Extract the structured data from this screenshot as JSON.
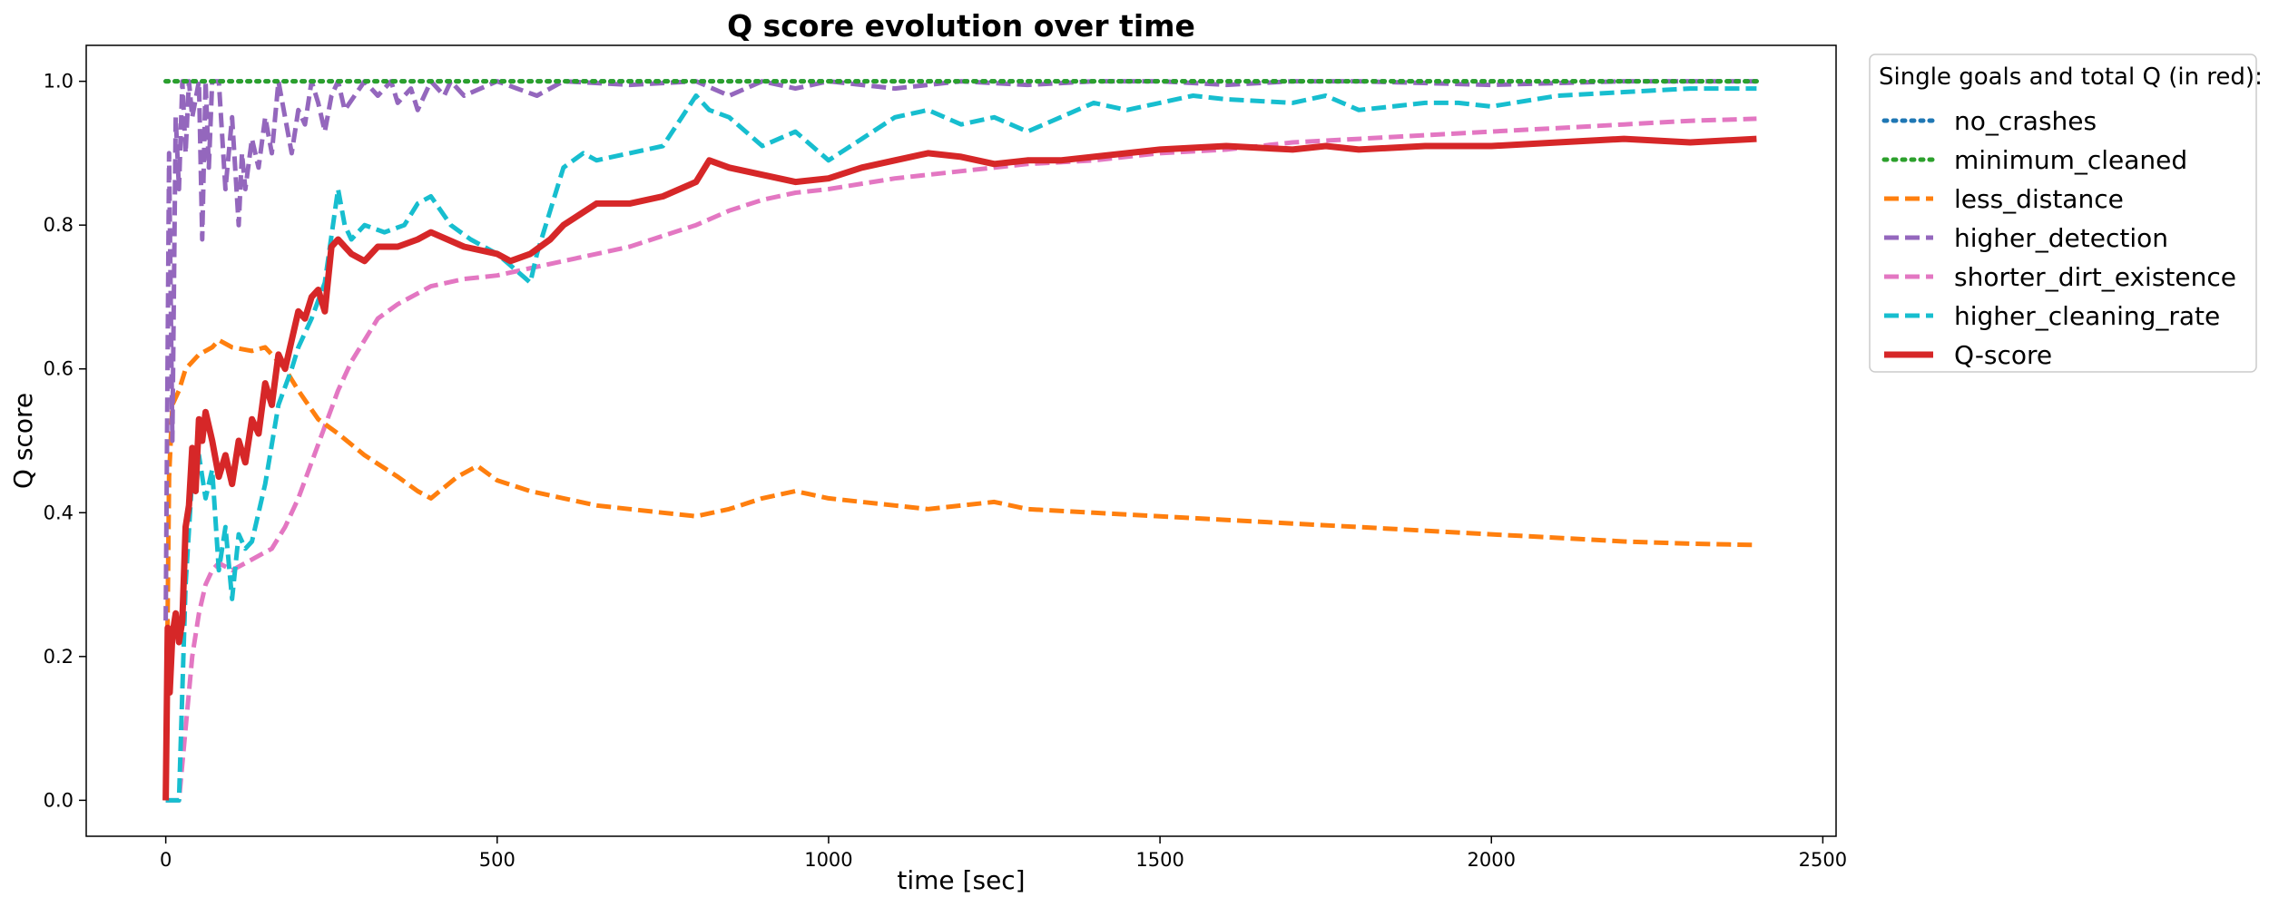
{
  "chart_data": {
    "type": "line",
    "title": "Q score evolution over time",
    "xlabel": "time [sec]",
    "ylabel": "Q score",
    "xlim": [
      -120,
      2520
    ],
    "ylim": [
      -0.05,
      1.05
    ],
    "xticks": [
      0,
      500,
      1000,
      1500,
      2000,
      2500
    ],
    "yticks": [
      0.0,
      0.2,
      0.4,
      0.6,
      0.8,
      1.0
    ],
    "grid": false,
    "legend": {
      "title": "Single goals and total Q (in red):",
      "position": "outside-right"
    },
    "series": [
      {
        "name": "no_crashes",
        "color": "#1f77b4",
        "style": "dotted",
        "x": [
          0,
          2400
        ],
        "y": [
          1.0,
          1.0
        ]
      },
      {
        "name": "minimum_cleaned",
        "color": "#2ca02c",
        "style": "dotted",
        "x": [
          0,
          2400
        ],
        "y": [
          1.0,
          1.0
        ]
      },
      {
        "name": "less_distance",
        "color": "#ff7f0e",
        "style": "dashed",
        "x": [
          0,
          5,
          10,
          20,
          30,
          50,
          70,
          80,
          100,
          130,
          150,
          180,
          200,
          230,
          260,
          300,
          350,
          380,
          400,
          440,
          470,
          500,
          550,
          600,
          650,
          700,
          750,
          800,
          850,
          900,
          950,
          1000,
          1050,
          1100,
          1150,
          1200,
          1250,
          1300,
          1400,
          1500,
          1600,
          1700,
          1800,
          1900,
          2000,
          2100,
          2200,
          2300,
          2400
        ],
        "y": [
          0.0,
          0.45,
          0.55,
          0.57,
          0.6,
          0.62,
          0.63,
          0.64,
          0.63,
          0.625,
          0.63,
          0.6,
          0.57,
          0.53,
          0.51,
          0.48,
          0.45,
          0.43,
          0.42,
          0.45,
          0.465,
          0.445,
          0.43,
          0.42,
          0.41,
          0.405,
          0.4,
          0.395,
          0.405,
          0.42,
          0.43,
          0.42,
          0.415,
          0.41,
          0.405,
          0.41,
          0.415,
          0.405,
          0.4,
          0.395,
          0.39,
          0.385,
          0.38,
          0.375,
          0.37,
          0.365,
          0.36,
          0.357,
          0.355
        ]
      },
      {
        "name": "higher_detection",
        "color": "#9467bd",
        "style": "dashed",
        "x": [
          0,
          5,
          10,
          15,
          20,
          25,
          30,
          35,
          40,
          50,
          55,
          60,
          65,
          70,
          80,
          90,
          100,
          110,
          115,
          120,
          130,
          140,
          150,
          160,
          170,
          180,
          190,
          200,
          210,
          220,
          230,
          240,
          250,
          260,
          270,
          300,
          320,
          340,
          350,
          370,
          380,
          400,
          420,
          430,
          450,
          500,
          530,
          560,
          600,
          700,
          800,
          850,
          900,
          950,
          1000,
          1100,
          1200,
          1300,
          1400,
          1500,
          1600,
          1700,
          1800,
          2000,
          2200,
          2400
        ],
        "y": [
          0.25,
          0.9,
          0.5,
          0.95,
          0.85,
          1.0,
          0.9,
          1.0,
          0.95,
          1.0,
          0.78,
          1.0,
          0.88,
          1.0,
          1.0,
          0.85,
          0.95,
          0.8,
          0.9,
          0.85,
          0.92,
          0.88,
          0.95,
          0.9,
          1.0,
          0.95,
          0.9,
          0.96,
          0.94,
          1.0,
          0.97,
          0.93,
          0.98,
          1.0,
          0.96,
          1.0,
          0.98,
          1.0,
          0.97,
          0.99,
          0.96,
          1.0,
          0.98,
          1.0,
          0.98,
          1.0,
          0.99,
          0.98,
          1.0,
          0.995,
          1.0,
          0.98,
          1.0,
          0.99,
          1.0,
          0.99,
          1.0,
          0.995,
          1.0,
          1.0,
          0.995,
          1.0,
          1.0,
          0.995,
          1.0,
          1.0
        ]
      },
      {
        "name": "shorter_dirt_existence",
        "color": "#e377c2",
        "style": "dashed",
        "x": [
          0,
          20,
          30,
          40,
          50,
          60,
          70,
          80,
          100,
          120,
          140,
          160,
          180,
          200,
          220,
          240,
          260,
          280,
          300,
          320,
          350,
          400,
          450,
          500,
          550,
          600,
          650,
          700,
          750,
          800,
          850,
          900,
          950,
          1000,
          1100,
          1200,
          1300,
          1400,
          1500,
          1600,
          1700,
          1800,
          1900,
          2000,
          2100,
          2200,
          2300,
          2400
        ],
        "y": [
          0.0,
          0.0,
          0.1,
          0.2,
          0.26,
          0.3,
          0.32,
          0.33,
          0.32,
          0.33,
          0.34,
          0.35,
          0.38,
          0.42,
          0.47,
          0.52,
          0.57,
          0.61,
          0.64,
          0.67,
          0.69,
          0.715,
          0.725,
          0.73,
          0.74,
          0.75,
          0.76,
          0.77,
          0.785,
          0.8,
          0.82,
          0.835,
          0.845,
          0.85,
          0.865,
          0.875,
          0.885,
          0.89,
          0.9,
          0.905,
          0.915,
          0.92,
          0.925,
          0.93,
          0.935,
          0.94,
          0.945,
          0.948
        ]
      },
      {
        "name": "higher_cleaning_rate",
        "color": "#17becf",
        "style": "dashed",
        "x": [
          0,
          20,
          30,
          40,
          50,
          60,
          70,
          80,
          90,
          100,
          110,
          120,
          130,
          150,
          170,
          190,
          200,
          220,
          240,
          260,
          270,
          280,
          300,
          330,
          360,
          380,
          400,
          430,
          460,
          500,
          550,
          560,
          580,
          600,
          630,
          650,
          700,
          750,
          800,
          820,
          850,
          900,
          950,
          1000,
          1050,
          1100,
          1150,
          1200,
          1250,
          1300,
          1350,
          1400,
          1450,
          1500,
          1550,
          1600,
          1700,
          1750,
          1800,
          1850,
          1900,
          1950,
          2000,
          2100,
          2200,
          2300,
          2400
        ],
        "y": [
          0.0,
          0.0,
          0.3,
          0.45,
          0.48,
          0.42,
          0.46,
          0.32,
          0.38,
          0.28,
          0.37,
          0.35,
          0.36,
          0.44,
          0.55,
          0.6,
          0.63,
          0.67,
          0.72,
          0.85,
          0.8,
          0.78,
          0.8,
          0.79,
          0.8,
          0.83,
          0.84,
          0.8,
          0.78,
          0.76,
          0.72,
          0.76,
          0.82,
          0.88,
          0.9,
          0.89,
          0.9,
          0.91,
          0.98,
          0.96,
          0.95,
          0.91,
          0.93,
          0.89,
          0.92,
          0.95,
          0.96,
          0.94,
          0.95,
          0.93,
          0.95,
          0.97,
          0.96,
          0.97,
          0.98,
          0.975,
          0.97,
          0.98,
          0.96,
          0.965,
          0.97,
          0.97,
          0.965,
          0.98,
          0.985,
          0.99,
          0.99
        ]
      },
      {
        "name": "Q-score",
        "color": "#d62728",
        "style": "solid",
        "x": [
          0,
          3,
          6,
          10,
          15,
          20,
          25,
          30,
          35,
          40,
          45,
          50,
          55,
          60,
          70,
          80,
          90,
          100,
          110,
          120,
          130,
          140,
          150,
          160,
          170,
          180,
          190,
          200,
          210,
          220,
          230,
          240,
          250,
          260,
          280,
          300,
          320,
          350,
          380,
          400,
          450,
          500,
          520,
          550,
          580,
          600,
          650,
          700,
          750,
          800,
          820,
          850,
          900,
          950,
          1000,
          1050,
          1100,
          1150,
          1200,
          1250,
          1300,
          1350,
          1400,
          1450,
          1500,
          1600,
          1700,
          1750,
          1800,
          1900,
          2000,
          2100,
          2200,
          2300,
          2400
        ],
        "y": [
          0.0,
          0.24,
          0.15,
          0.23,
          0.26,
          0.22,
          0.25,
          0.38,
          0.41,
          0.49,
          0.43,
          0.53,
          0.5,
          0.54,
          0.5,
          0.45,
          0.48,
          0.44,
          0.5,
          0.47,
          0.53,
          0.51,
          0.58,
          0.55,
          0.62,
          0.6,
          0.64,
          0.68,
          0.67,
          0.7,
          0.71,
          0.68,
          0.77,
          0.78,
          0.76,
          0.75,
          0.77,
          0.77,
          0.78,
          0.79,
          0.77,
          0.76,
          0.75,
          0.76,
          0.78,
          0.8,
          0.83,
          0.83,
          0.84,
          0.86,
          0.89,
          0.88,
          0.87,
          0.86,
          0.865,
          0.88,
          0.89,
          0.9,
          0.895,
          0.885,
          0.89,
          0.89,
          0.895,
          0.9,
          0.905,
          0.91,
          0.905,
          0.91,
          0.905,
          0.91,
          0.91,
          0.915,
          0.92,
          0.915,
          0.92
        ]
      }
    ]
  }
}
